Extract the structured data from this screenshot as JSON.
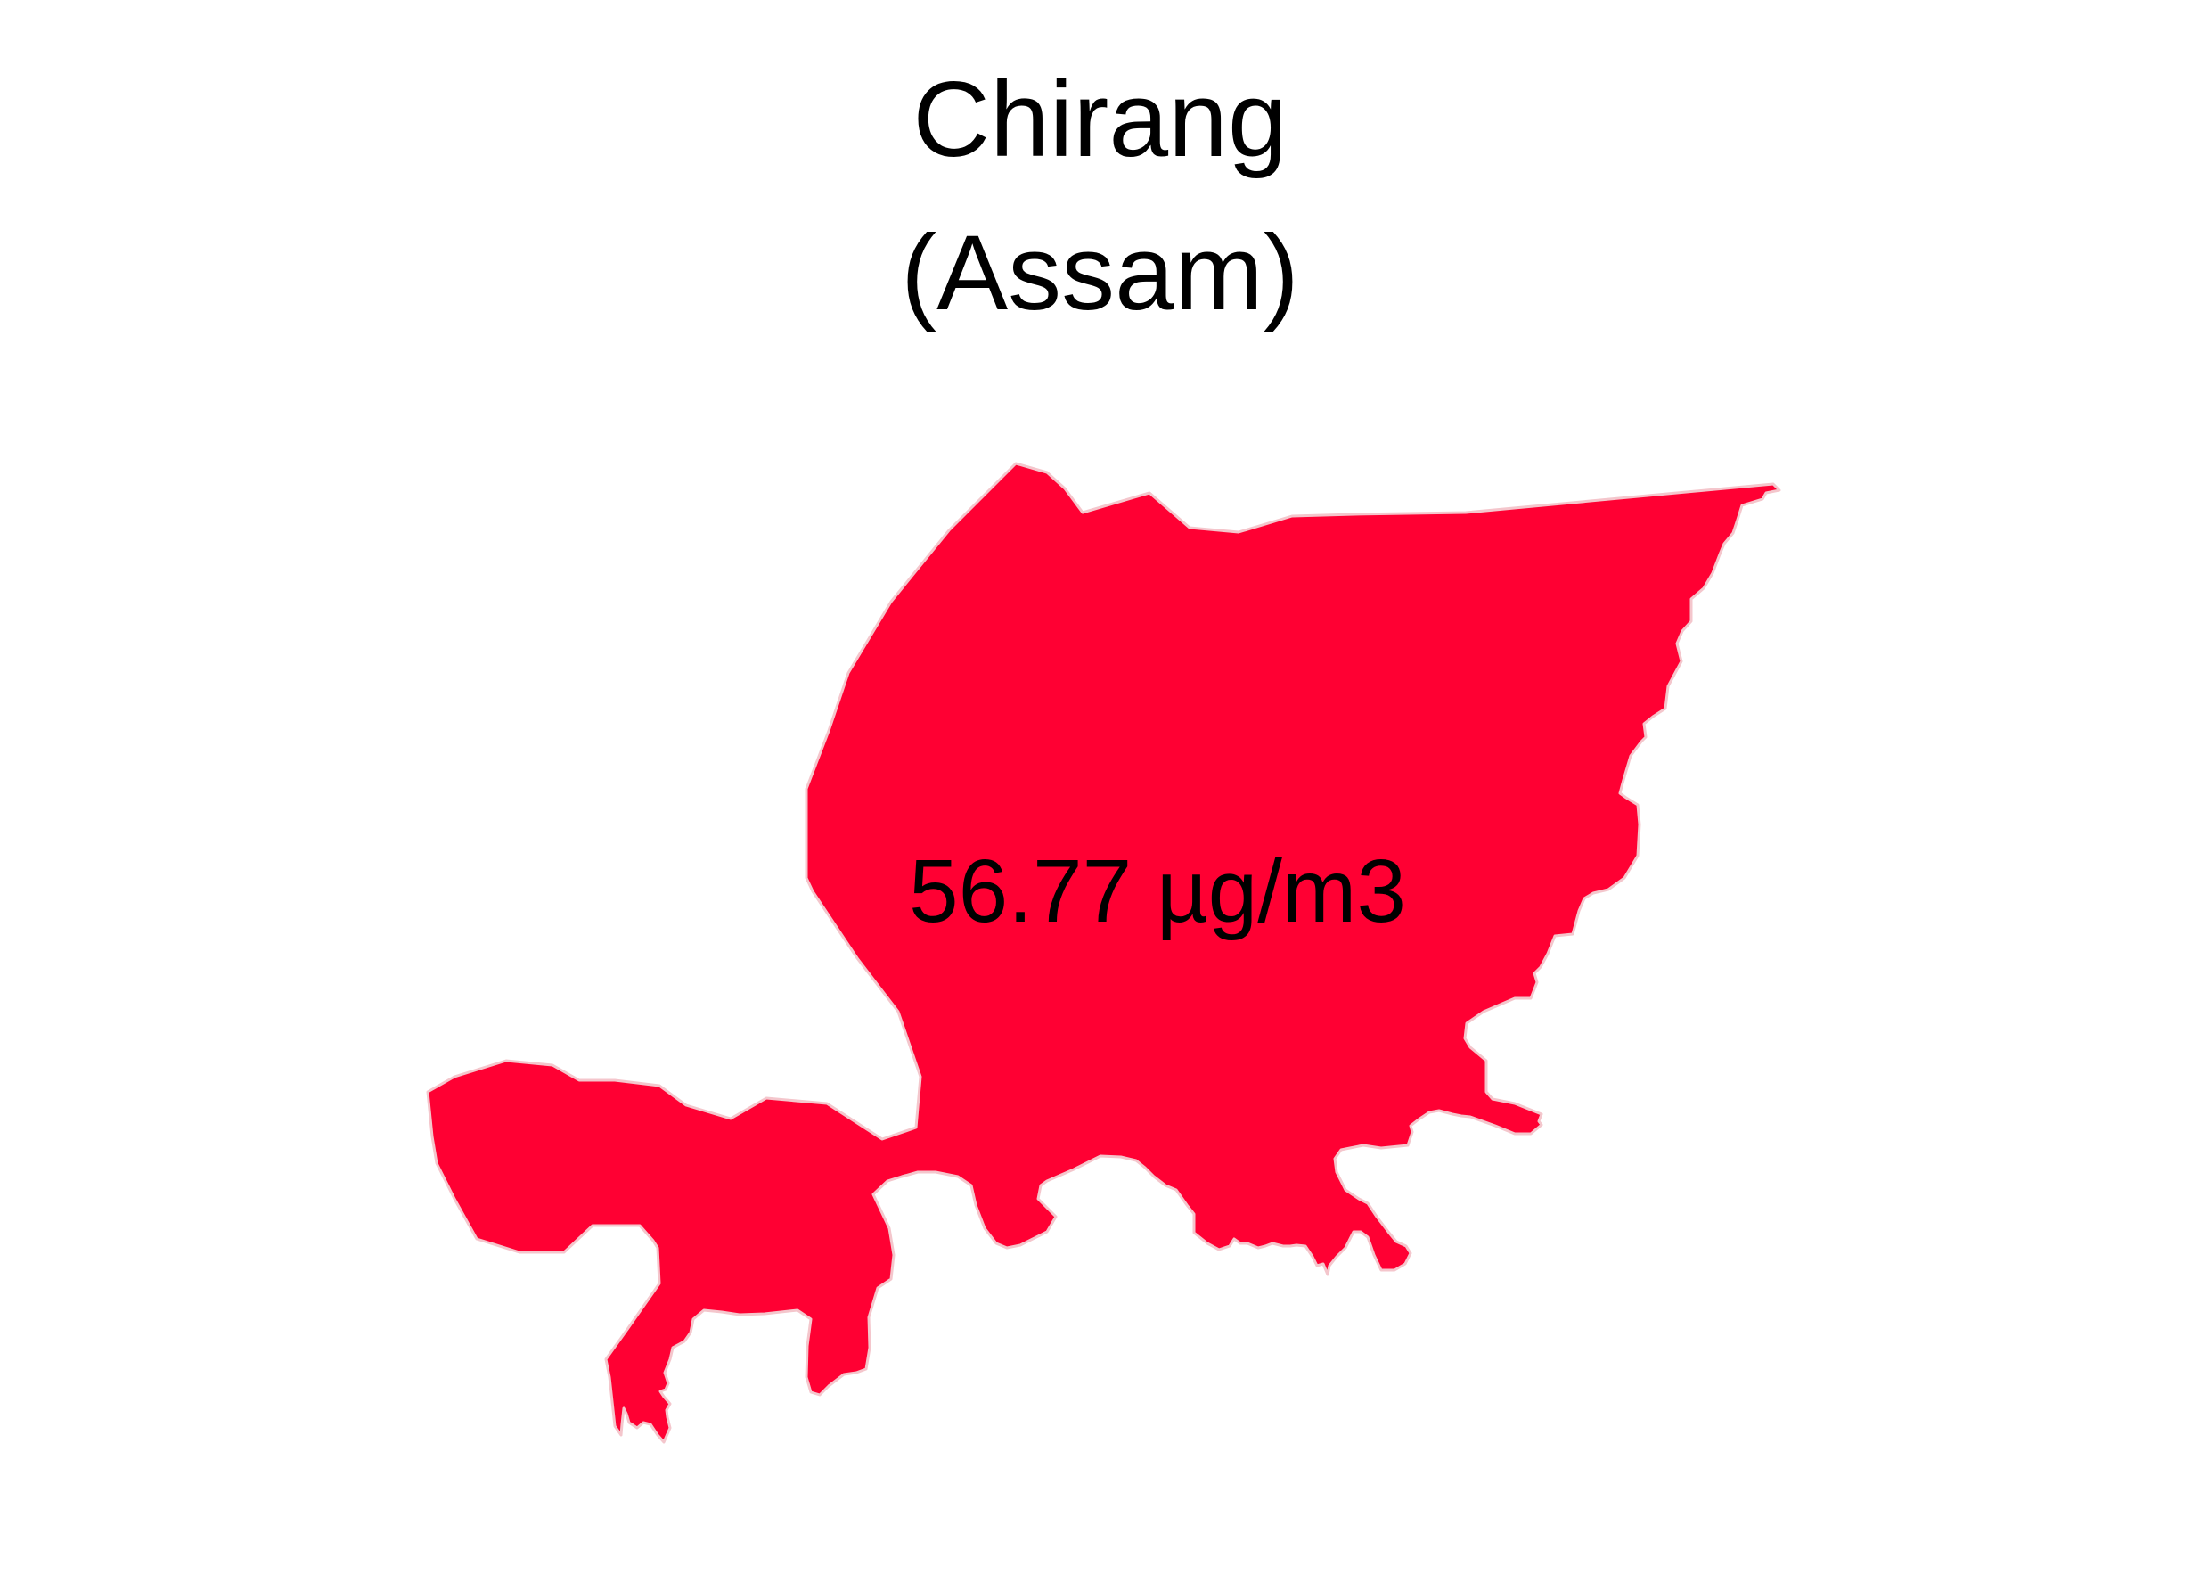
{
  "map": {
    "title": "Chirang",
    "subtitle": "(Assam)",
    "region_name": "Chirang",
    "state_name": "Assam",
    "value_label": "56.77 µg/m3",
    "value": 56.77,
    "unit": "µg/m3",
    "fill_color": "#FF0033",
    "stroke_color": "#F4C6CC",
    "background_color": "#FFFFFF",
    "text_color": "#000000"
  }
}
